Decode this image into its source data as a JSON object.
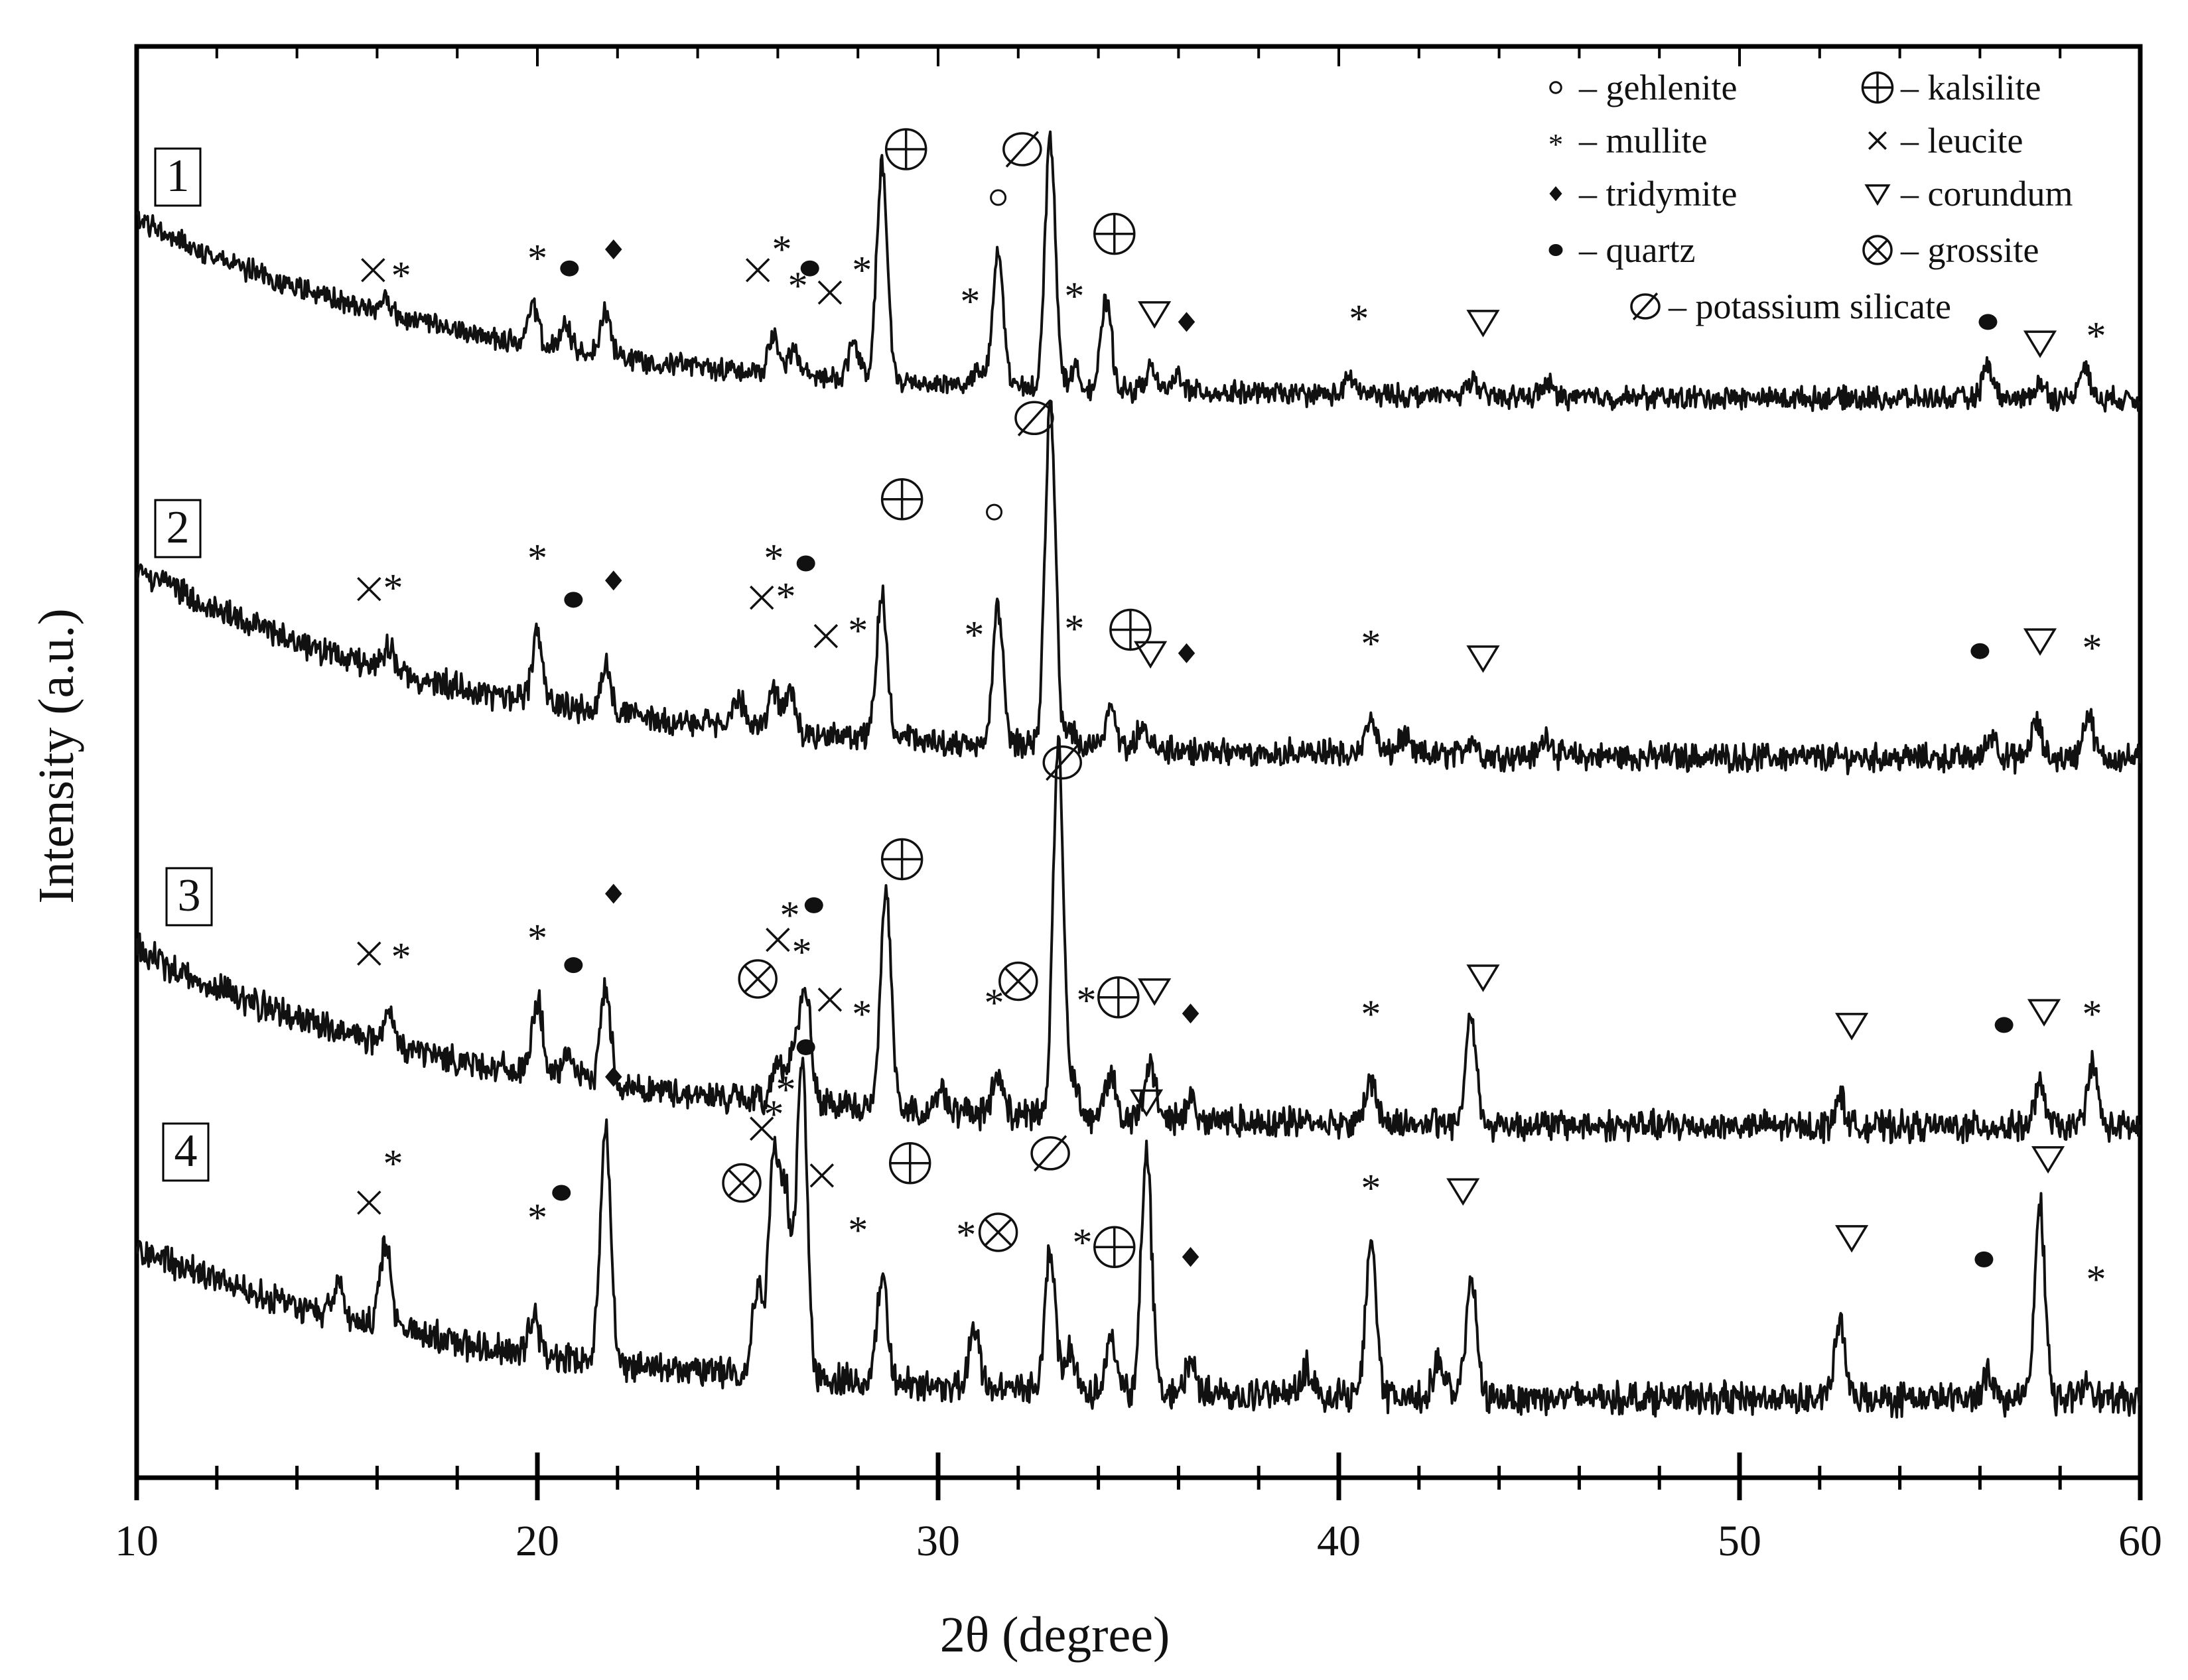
{
  "chart_data": {
    "type": "line",
    "xlabel": "2θ (degree)",
    "ylabel": "Intensity (a.u.)",
    "xlim": [
      10,
      60
    ],
    "x_ticks": [
      10,
      20,
      30,
      40,
      50,
      60
    ],
    "x_tick_labels": [
      "10",
      "20",
      "30",
      "40",
      "50",
      "60"
    ],
    "y_ticks": [],
    "grid": false,
    "legend_position": "top-right",
    "legend": [
      {
        "symbol": "o",
        "symbol_kind": "circle-small",
        "label": "– gehlenite"
      },
      {
        "symbol": "⊕",
        "symbol_kind": "kalsilite",
        "label": "– kalsilite"
      },
      {
        "symbol": "*",
        "symbol_kind": "asterisk",
        "label": "– mullite"
      },
      {
        "symbol": "×",
        "symbol_kind": "cross",
        "label": "– leucite"
      },
      {
        "symbol": "◆",
        "symbol_kind": "diamond",
        "label": "– tridymite"
      },
      {
        "symbol": "∇",
        "symbol_kind": "triangle",
        "label": "– corundum"
      },
      {
        "symbol": "●",
        "symbol_kind": "dot",
        "label": "– quartz"
      },
      {
        "symbol": "⊗",
        "symbol_kind": "grossite",
        "label": "– grossite"
      },
      {
        "symbol": "∅",
        "symbol_kind": "silicate",
        "label": "– potassium silicate"
      }
    ],
    "series": [
      {
        "name": "1",
        "baseline": {
          "start": 0.74,
          "end": 0.09,
          "decay": 5.5,
          "noise": 0.032
        },
        "peaks": [
          [
            16.2,
            0.06
          ],
          [
            19.9,
            0.13
          ],
          [
            20.7,
            0.08
          ],
          [
            21.7,
            0.16
          ],
          [
            25.9,
            0.13
          ],
          [
            26.4,
            0.08
          ],
          [
            27.9,
            0.13
          ],
          [
            28.6,
            0.78
          ],
          [
            31.0,
            0.05
          ],
          [
            31.5,
            0.48
          ],
          [
            32.8,
            0.9
          ],
          [
            33.4,
            0.07
          ],
          [
            34.2,
            0.32
          ],
          [
            35.3,
            0.08
          ],
          [
            36.0,
            0.06
          ],
          [
            40.3,
            0.06
          ],
          [
            43.3,
            0.06
          ],
          [
            45.2,
            0.05
          ],
          [
            56.2,
            0.12
          ],
          [
            57.5,
            0.06
          ],
          [
            58.6,
            0.12
          ]
        ],
        "markers": [
          {
            "x": 15.9,
            "kind": "cross",
            "h": 0.3
          },
          {
            "x": 16.6,
            "kind": "asterisk",
            "h": 0.3
          },
          {
            "x": 20.0,
            "kind": "asterisk",
            "h": 0.4
          },
          {
            "x": 20.8,
            "kind": "dot",
            "h": 0.31
          },
          {
            "x": 21.9,
            "kind": "diamond",
            "h": 0.42
          },
          {
            "x": 25.5,
            "kind": "cross",
            "h": 0.3
          },
          {
            "x": 26.1,
            "kind": "asterisk",
            "h": 0.45
          },
          {
            "x": 26.5,
            "kind": "asterisk",
            "h": 0.24
          },
          {
            "x": 26.8,
            "kind": "dot",
            "h": 0.31
          },
          {
            "x": 27.3,
            "kind": "cross",
            "h": 0.17
          },
          {
            "x": 28.1,
            "kind": "asterisk",
            "h": 0.33
          },
          {
            "x": 29.2,
            "kind": "kalsilite",
            "h": 1.0
          },
          {
            "x": 30.8,
            "kind": "asterisk",
            "h": 0.15
          },
          {
            "x": 31.5,
            "kind": "circle-small",
            "h": 0.72
          },
          {
            "x": 32.1,
            "kind": "silicate",
            "h": 1.0
          },
          {
            "x": 33.4,
            "kind": "asterisk",
            "h": 0.18
          },
          {
            "x": 34.4,
            "kind": "kalsilite",
            "h": 0.51
          },
          {
            "x": 35.4,
            "kind": "triangle",
            "h": 0.05
          },
          {
            "x": 36.2,
            "kind": "diamond",
            "h": 0.0
          },
          {
            "x": 40.5,
            "kind": "asterisk",
            "h": 0.05
          },
          {
            "x": 43.6,
            "kind": "triangle",
            "h": 0.0
          },
          {
            "x": 56.2,
            "kind": "dot",
            "h": 0.0
          },
          {
            "x": 57.5,
            "kind": "triangle",
            "h": -0.12
          },
          {
            "x": 58.9,
            "kind": "asterisk",
            "h": -0.05
          }
        ]
      },
      {
        "name": "2",
        "baseline": {
          "start": 0.6,
          "end": 0.05,
          "decay": 5.5,
          "noise": 0.032
        },
        "peaks": [
          [
            16.3,
            0.08
          ],
          [
            20.0,
            0.2
          ],
          [
            21.7,
            0.15
          ],
          [
            25.0,
            0.1
          ],
          [
            25.9,
            0.11
          ],
          [
            26.3,
            0.12
          ],
          [
            28.6,
            0.42
          ],
          [
            31.5,
            0.4
          ],
          [
            32.8,
            1.0
          ],
          [
            33.3,
            0.05
          ],
          [
            34.3,
            0.12
          ],
          [
            35.1,
            0.06
          ],
          [
            40.8,
            0.1
          ],
          [
            41.6,
            0.05
          ],
          [
            43.3,
            0.05
          ],
          [
            45.2,
            0.06
          ],
          [
            56.3,
            0.07
          ],
          [
            57.4,
            0.1
          ],
          [
            58.7,
            0.13
          ]
        ],
        "markers": [
          {
            "x": 15.8,
            "kind": "cross",
            "h": 0.35
          },
          {
            "x": 16.4,
            "kind": "asterisk",
            "h": 0.38
          },
          {
            "x": 20.0,
            "kind": "asterisk",
            "h": 0.52
          },
          {
            "x": 20.9,
            "kind": "dot",
            "h": 0.3
          },
          {
            "x": 21.9,
            "kind": "diamond",
            "h": 0.39
          },
          {
            "x": 25.6,
            "kind": "cross",
            "h": 0.31
          },
          {
            "x": 25.9,
            "kind": "asterisk",
            "h": 0.52
          },
          {
            "x": 26.2,
            "kind": "asterisk",
            "h": 0.34
          },
          {
            "x": 26.7,
            "kind": "dot",
            "h": 0.47
          },
          {
            "x": 27.2,
            "kind": "cross",
            "h": 0.13
          },
          {
            "x": 28.0,
            "kind": "asterisk",
            "h": 0.18
          },
          {
            "x": 29.1,
            "kind": "kalsilite",
            "h": 0.77
          },
          {
            "x": 30.9,
            "kind": "asterisk",
            "h": 0.16
          },
          {
            "x": 31.4,
            "kind": "circle-small",
            "h": 0.71
          },
          {
            "x": 32.4,
            "kind": "silicate",
            "h": 1.15
          },
          {
            "x": 33.4,
            "kind": "asterisk",
            "h": 0.19
          },
          {
            "x": 34.8,
            "kind": "kalsilite",
            "h": 0.16
          },
          {
            "x": 35.3,
            "kind": "triangle",
            "h": 0.05
          },
          {
            "x": 36.2,
            "kind": "diamond",
            "h": 0.05
          },
          {
            "x": 40.8,
            "kind": "asterisk",
            "h": 0.12
          },
          {
            "x": 43.6,
            "kind": "triangle",
            "h": 0.03
          },
          {
            "x": 56.0,
            "kind": "dot",
            "h": 0.06
          },
          {
            "x": 57.5,
            "kind": "triangle",
            "h": 0.11
          },
          {
            "x": 58.8,
            "kind": "asterisk",
            "h": 0.1
          }
        ]
      },
      {
        "name": "3",
        "baseline": {
          "start": 0.48,
          "end": 0.0,
          "decay": 5.5,
          "noise": 0.032
        },
        "peaks": [
          [
            16.3,
            0.07
          ],
          [
            20.0,
            0.2
          ],
          [
            20.8,
            0.07
          ],
          [
            21.7,
            0.26
          ],
          [
            26.0,
            0.12
          ],
          [
            26.4,
            0.15
          ],
          [
            26.7,
            0.3
          ],
          [
            28.7,
            0.6
          ],
          [
            30.1,
            0.06
          ],
          [
            31.5,
            0.11
          ],
          [
            33.0,
            1.0
          ],
          [
            33.4,
            0.1
          ],
          [
            34.3,
            0.12
          ],
          [
            35.3,
            0.15
          ],
          [
            36.3,
            0.06
          ],
          [
            40.8,
            0.12
          ],
          [
            43.3,
            0.3
          ],
          [
            52.5,
            0.08
          ],
          [
            57.5,
            0.11
          ],
          [
            58.8,
            0.17
          ]
        ],
        "markers": [
          {
            "x": 15.8,
            "kind": "cross",
            "h": 0.29
          },
          {
            "x": 16.6,
            "kind": "asterisk",
            "h": 0.3
          },
          {
            "x": 20.0,
            "kind": "asterisk",
            "h": 0.38
          },
          {
            "x": 20.9,
            "kind": "dot",
            "h": 0.24
          },
          {
            "x": 21.9,
            "kind": "diamond",
            "h": 0.55
          },
          {
            "x": 25.5,
            "kind": "grossite",
            "h": 0.18
          },
          {
            "x": 26.0,
            "kind": "cross",
            "h": 0.35
          },
          {
            "x": 26.3,
            "kind": "asterisk",
            "h": 0.48
          },
          {
            "x": 26.6,
            "kind": "asterisk",
            "h": 0.32
          },
          {
            "x": 26.9,
            "kind": "dot",
            "h": 0.5
          },
          {
            "x": 27.3,
            "kind": "cross",
            "h": 0.09
          },
          {
            "x": 28.1,
            "kind": "asterisk",
            "h": 0.05
          },
          {
            "x": 29.1,
            "kind": "kalsilite",
            "h": 0.7
          },
          {
            "x": 31.4,
            "kind": "asterisk",
            "h": 0.1
          },
          {
            "x": 32.0,
            "kind": "grossite",
            "h": 0.17
          },
          {
            "x": 33.1,
            "kind": "silicate",
            "h": 1.12
          },
          {
            "x": 33.7,
            "kind": "asterisk",
            "h": 0.11
          },
          {
            "x": 34.5,
            "kind": "kalsilite",
            "h": 0.1
          },
          {
            "x": 35.4,
            "kind": "triangle",
            "h": 0.13
          },
          {
            "x": 36.3,
            "kind": "diamond",
            "h": 0.03
          },
          {
            "x": 40.8,
            "kind": "asterisk",
            "h": 0.05
          },
          {
            "x": 43.6,
            "kind": "triangle",
            "h": 0.19
          },
          {
            "x": 52.8,
            "kind": "triangle",
            "h": -0.02
          },
          {
            "x": 56.6,
            "kind": "dot",
            "h": -0.02
          },
          {
            "x": 57.6,
            "kind": "triangle",
            "h": 0.04
          },
          {
            "x": 58.8,
            "kind": "asterisk",
            "h": 0.05
          }
        ]
      },
      {
        "name": "4",
        "baseline": {
          "start": 0.38,
          "end": 0.0,
          "decay": 5.5,
          "noise": 0.032
        },
        "peaks": [
          [
            15.0,
            0.08
          ],
          [
            16.2,
            0.22
          ],
          [
            19.9,
            0.1
          ],
          [
            21.7,
            0.6
          ],
          [
            25.5,
            0.22
          ],
          [
            25.9,
            0.55
          ],
          [
            26.2,
            0.45
          ],
          [
            26.6,
            0.8
          ],
          [
            28.6,
            0.27
          ],
          [
            30.9,
            0.15
          ],
          [
            32.8,
            0.35
          ],
          [
            33.3,
            0.1
          ],
          [
            34.3,
            0.12
          ],
          [
            35.2,
            0.6
          ],
          [
            36.3,
            0.08
          ],
          [
            39.2,
            0.07
          ],
          [
            40.8,
            0.38
          ],
          [
            42.5,
            0.1
          ],
          [
            43.3,
            0.3
          ],
          [
            52.5,
            0.19
          ],
          [
            56.2,
            0.07
          ],
          [
            57.5,
            0.48
          ],
          [
            58.7,
            0.05
          ]
        ],
        "markers": [
          {
            "x": 15.8,
            "kind": "cross",
            "h": 0.34
          },
          {
            "x": 16.4,
            "kind": "asterisk",
            "h": 0.52
          },
          {
            "x": 20.0,
            "kind": "asterisk",
            "h": 0.3
          },
          {
            "x": 20.6,
            "kind": "dot",
            "h": 0.38
          },
          {
            "x": 21.9,
            "kind": "diamond",
            "h": 0.85
          },
          {
            "x": 25.1,
            "kind": "grossite",
            "h": 0.42
          },
          {
            "x": 25.6,
            "kind": "cross",
            "h": 0.64
          },
          {
            "x": 25.9,
            "kind": "asterisk",
            "h": 0.72
          },
          {
            "x": 26.2,
            "kind": "asterisk",
            "h": 0.82
          },
          {
            "x": 26.7,
            "kind": "dot",
            "h": 0.97
          },
          {
            "x": 27.1,
            "kind": "cross",
            "h": 0.45
          },
          {
            "x": 28.0,
            "kind": "asterisk",
            "h": 0.25
          },
          {
            "x": 29.3,
            "kind": "kalsilite",
            "h": 0.5
          },
          {
            "x": 30.7,
            "kind": "asterisk",
            "h": 0.23
          },
          {
            "x": 31.5,
            "kind": "grossite",
            "h": 0.22
          },
          {
            "x": 32.8,
            "kind": "silicate",
            "h": 0.54
          },
          {
            "x": 33.6,
            "kind": "asterisk",
            "h": 0.2
          },
          {
            "x": 34.4,
            "kind": "kalsilite",
            "h": 0.16
          },
          {
            "x": 35.2,
            "kind": "triangle",
            "h": 0.75
          },
          {
            "x": 36.3,
            "kind": "diamond",
            "h": 0.12
          },
          {
            "x": 40.8,
            "kind": "asterisk",
            "h": 0.42
          },
          {
            "x": 43.1,
            "kind": "triangle",
            "h": 0.39
          },
          {
            "x": 52.8,
            "kind": "triangle",
            "h": 0.2
          },
          {
            "x": 56.1,
            "kind": "dot",
            "h": 0.11
          },
          {
            "x": 57.7,
            "kind": "triangle",
            "h": 0.52
          },
          {
            "x": 58.9,
            "kind": "asterisk",
            "h": 0.05
          }
        ]
      }
    ]
  }
}
